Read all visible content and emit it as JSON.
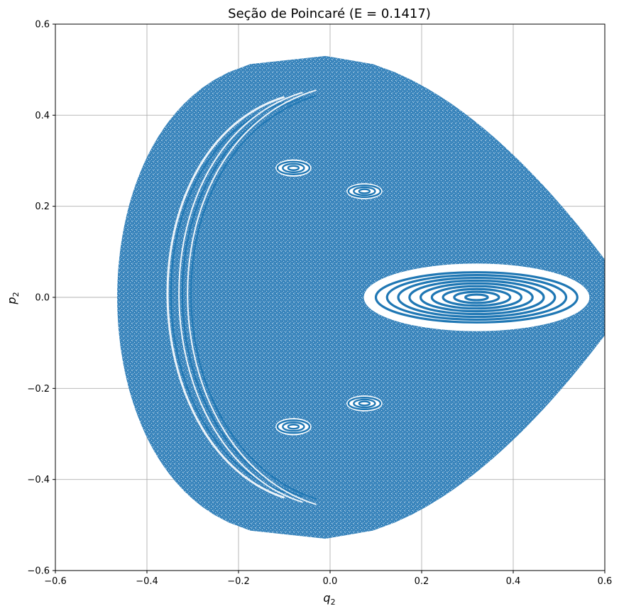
{
  "chart_data": {
    "type": "scatter",
    "title": "Seção de Poincaré (E = 0.1417)",
    "xlabel": "q",
    "xlabel_sub": "2",
    "ylabel": "p",
    "ylabel_sub": "2",
    "xlim": [
      -0.6,
      0.6
    ],
    "ylim": [
      -0.6,
      0.6
    ],
    "xticks": [
      -0.6,
      -0.4,
      -0.2,
      0.0,
      0.2,
      0.4,
      0.6
    ],
    "yticks": [
      -0.6,
      -0.4,
      -0.2,
      0.0,
      0.2,
      0.4,
      0.6
    ],
    "xtick_labels": [
      "−0.6",
      "−0.4",
      "−0.2",
      "0.0",
      "0.2",
      "0.4",
      "0.6"
    ],
    "ytick_labels": [
      "−0.6",
      "−0.4",
      "−0.2",
      "0.0",
      "0.2",
      "0.4",
      "0.6"
    ],
    "grid": true,
    "marker_color": "#1f77b4",
    "energy": 0.1417,
    "chaotic_sea_boundary": {
      "center_p": 0.0,
      "p_extent": 0.53,
      "q_at_extent": -0.01,
      "q_left": -0.465,
      "q_right_at_p0": 0.66
    },
    "islands": [
      {
        "name": "central",
        "q": 0.32,
        "p": 0.0,
        "rq": 0.22,
        "rp": 0.055,
        "rings": 9
      },
      {
        "name": "upper-left",
        "q": -0.08,
        "p": 0.284,
        "rq": 0.035,
        "rp": 0.014,
        "rings": 3
      },
      {
        "name": "upper-right",
        "q": 0.075,
        "p": 0.233,
        "rq": 0.035,
        "rp": 0.013,
        "rings": 3
      },
      {
        "name": "lower-left",
        "q": -0.08,
        "p": -0.284,
        "rq": 0.035,
        "rp": 0.014,
        "rings": 3
      },
      {
        "name": "lower-right",
        "q": 0.075,
        "p": -0.233,
        "rq": 0.035,
        "rp": 0.013,
        "rings": 3
      }
    ],
    "left_arcs": [
      {
        "q_vertex": -0.39,
        "p_top": 0.44,
        "q_tip": -0.1
      },
      {
        "q_vertex": -0.37,
        "p_top": 0.45,
        "q_tip": -0.06
      },
      {
        "q_vertex": -0.355,
        "p_top": 0.455,
        "q_tip": -0.03
      }
    ]
  }
}
